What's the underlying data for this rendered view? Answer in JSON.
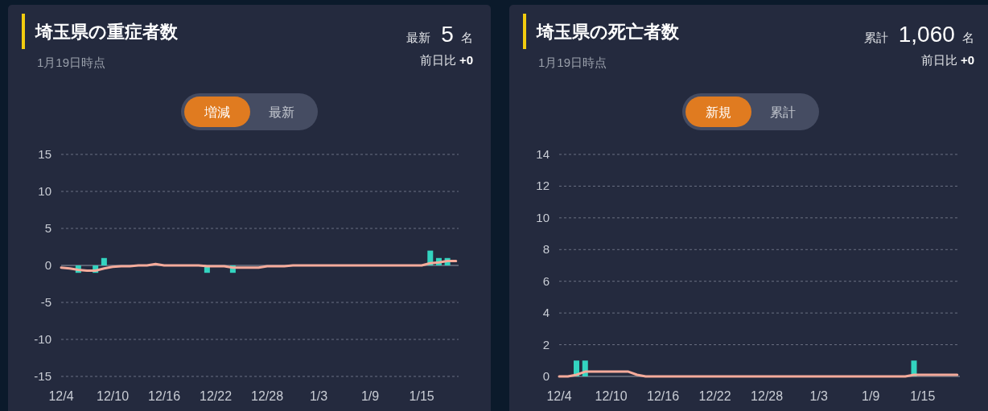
{
  "chart_data": [
    {
      "type": "bar",
      "title": "埼玉県の重症者数",
      "subtitle": "1月19日時点",
      "annotations": [
        "最新 5 名",
        "前日比 +0",
        "増減",
        "最新"
      ],
      "categories": [
        "12/4",
        null,
        null,
        null,
        null,
        null,
        "12/10",
        null,
        null,
        null,
        null,
        null,
        "12/16",
        null,
        null,
        null,
        null,
        null,
        "12/22",
        null,
        null,
        null,
        null,
        null,
        "12/28",
        null,
        null,
        null,
        null,
        null,
        "1/3",
        null,
        null,
        null,
        null,
        null,
        "1/9",
        null,
        null,
        null,
        null,
        null,
        "1/15",
        null,
        null,
        null,
        null
      ],
      "series": [
        {
          "type": "bar",
          "color": "#33d4c0",
          "values": [
            0,
            0,
            -1,
            0,
            -1,
            1,
            0,
            0,
            0,
            0,
            0,
            0,
            0,
            0,
            0,
            0,
            0,
            -1,
            0,
            0,
            -1,
            0,
            0,
            0,
            0,
            0,
            0,
            0,
            0,
            0,
            0,
            0,
            0,
            0,
            0,
            0,
            0,
            0,
            0,
            0,
            0,
            0,
            0,
            2,
            1,
            1,
            0
          ]
        },
        {
          "type": "line",
          "color": "#f5ab9b",
          "values": [
            -0.3,
            -0.4,
            -0.6,
            -0.7,
            -0.7,
            -0.4,
            -0.2,
            -0.1,
            -0.1,
            0,
            0,
            0.2,
            0,
            0,
            0,
            0,
            0,
            -0.1,
            -0.1,
            -0.1,
            -0.3,
            -0.3,
            -0.3,
            -0.3,
            -0.1,
            -0.1,
            -0.1,
            0,
            0,
            0,
            0,
            0,
            0,
            0,
            0,
            0,
            0,
            0,
            0,
            0,
            0,
            0,
            0,
            0.3,
            0.4,
            0.6,
            0.6
          ]
        }
      ],
      "ylim": [
        -15,
        15
      ],
      "yticks": [
        -15,
        -10,
        -5,
        0,
        5,
        10,
        15
      ],
      "grid": "y"
    },
    {
      "type": "bar",
      "title": "埼玉県の死亡者数",
      "subtitle": "1月19日時点",
      "annotations": [
        "累計 1,060 名",
        "前日比 +0",
        "新規",
        "累計"
      ],
      "categories": [
        "12/4",
        null,
        null,
        null,
        null,
        null,
        "12/10",
        null,
        null,
        null,
        null,
        null,
        "12/16",
        null,
        null,
        null,
        null,
        null,
        "12/22",
        null,
        null,
        null,
        null,
        null,
        "12/28",
        null,
        null,
        null,
        null,
        null,
        "1/3",
        null,
        null,
        null,
        null,
        null,
        "1/9",
        null,
        null,
        null,
        null,
        null,
        "1/15",
        null,
        null,
        null,
        null
      ],
      "series": [
        {
          "type": "bar",
          "color": "#33d4c0",
          "values": [
            0,
            0,
            1,
            1,
            0,
            0,
            0,
            0,
            0,
            0,
            0,
            0,
            0,
            0,
            0,
            0,
            0,
            0,
            0,
            0,
            0,
            0,
            0,
            0,
            0,
            0,
            0,
            0,
            0,
            0,
            0,
            0,
            0,
            0,
            0,
            0,
            0,
            0,
            0,
            0,
            0,
            1,
            0,
            0,
            0,
            0,
            0
          ]
        },
        {
          "type": "line",
          "color": "#f5ab9b",
          "values": [
            0,
            0,
            0.1,
            0.3,
            0.3,
            0.3,
            0.3,
            0.3,
            0.3,
            0.1,
            0,
            0,
            0,
            0,
            0,
            0,
            0,
            0,
            0,
            0,
            0,
            0,
            0,
            0,
            0,
            0,
            0,
            0,
            0,
            0,
            0,
            0,
            0,
            0,
            0,
            0,
            0,
            0,
            0,
            0,
            0,
            0.1,
            0.1,
            0.1,
            0.1,
            0.1,
            0.1
          ]
        }
      ],
      "ylim": [
        0,
        14
      ],
      "yticks": [
        0,
        2,
        4,
        6,
        8,
        10,
        12,
        14
      ],
      "grid": "y"
    }
  ]
}
